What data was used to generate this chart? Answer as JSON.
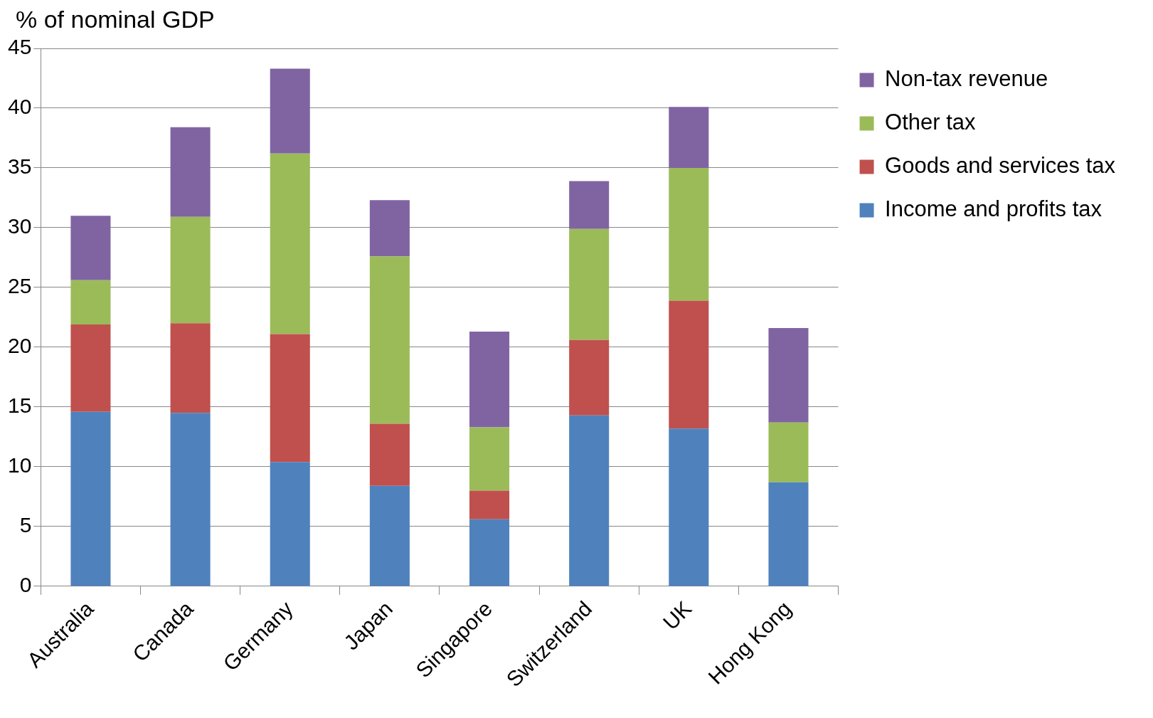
{
  "chart_data": {
    "type": "bar",
    "ylabel": "% of nominal GDP",
    "stacked": true,
    "categories": [
      "Australia",
      "Canada",
      "Germany",
      "Japan",
      "Singapore",
      "Switzerland",
      "UK",
      "Hong Kong"
    ],
    "series": [
      {
        "name": "Income and profits tax",
        "color": "#4f81bd",
        "values": [
          14.6,
          14.5,
          10.4,
          8.4,
          5.6,
          14.3,
          13.2,
          8.7
        ]
      },
      {
        "name": "Goods and services tax",
        "color": "#c0504d",
        "values": [
          7.3,
          7.5,
          10.7,
          5.2,
          2.4,
          6.3,
          10.7,
          0
        ]
      },
      {
        "name": "Other tax",
        "color": "#9bbb59",
        "values": [
          3.7,
          8.9,
          15.1,
          14.0,
          5.3,
          9.3,
          11.1,
          5.0
        ]
      },
      {
        "name": "Non-tax revenue",
        "color": "#8064a2",
        "values": [
          5.4,
          7.5,
          7.1,
          4.7,
          8.0,
          4.0,
          5.1,
          7.9
        ]
      }
    ],
    "ylim": [
      0,
      45
    ],
    "yticks": [
      0,
      5,
      10,
      15,
      20,
      25,
      30,
      35,
      40,
      45
    ],
    "grid": "y",
    "legend": "right"
  }
}
